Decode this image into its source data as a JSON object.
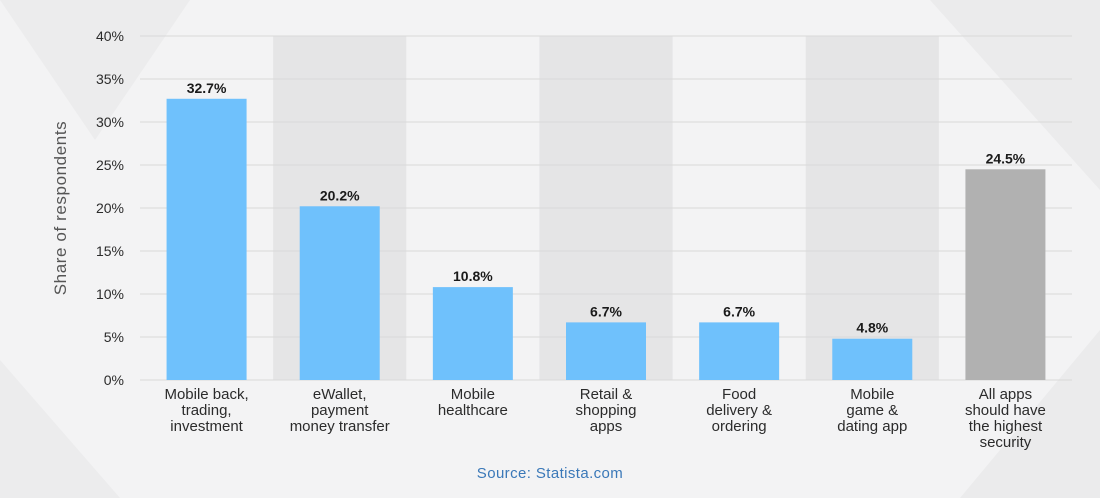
{
  "source_text": "Source: Statista.com",
  "colors": {
    "bar": "#6fc1fc",
    "bar_highlight": "#b1b1b1",
    "band": "#e5e5e6",
    "grid": "#d9d9d9",
    "background": "#f3f3f4"
  },
  "chart_data": {
    "type": "bar",
    "title": "",
    "xlabel": "",
    "ylabel": "Share of respondents",
    "ylim": [
      0,
      40
    ],
    "yticks": [
      0,
      5,
      10,
      15,
      20,
      25,
      30,
      35,
      40
    ],
    "y_tick_suffix": "%",
    "grid": true,
    "legend": "none",
    "categories": [
      [
        "Mobile back,",
        "trading,",
        "investment"
      ],
      [
        "eWallet,",
        "payment",
        "money transfer"
      ],
      [
        "Mobile",
        "healthcare"
      ],
      [
        "Retail &",
        "shopping",
        "apps"
      ],
      [
        "Food",
        "delivery &",
        "ordering"
      ],
      [
        "Mobile",
        "game &",
        "dating app"
      ],
      [
        "All apps",
        "should have",
        "the highest",
        "security"
      ]
    ],
    "values": [
      32.7,
      20.2,
      10.8,
      6.7,
      6.7,
      4.8,
      24.5
    ],
    "value_labels": [
      "32.7%",
      "20.2%",
      "10.8%",
      "6.7%",
      "6.7%",
      "4.8%",
      "24.5%"
    ],
    "highlight_index": 6
  }
}
